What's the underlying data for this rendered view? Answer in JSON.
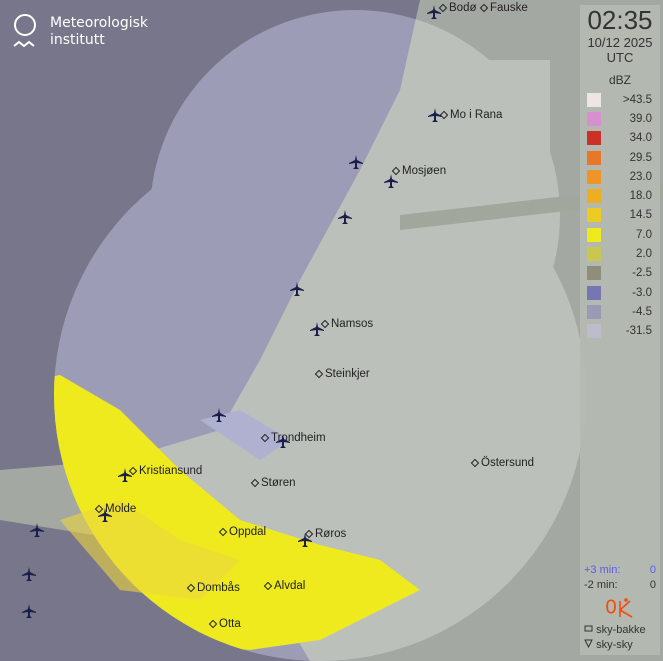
{
  "brand": {
    "line1": "Meteorologisk",
    "line2": "institutt"
  },
  "time": "02:35",
  "date": "10/12 2025",
  "timezone": "UTC",
  "legend": {
    "unit": "dBZ",
    "items": [
      {
        "label": ">43.5",
        "color": "#efe4e6"
      },
      {
        "label": "39.0",
        "color": "#d690d0"
      },
      {
        "label": "34.0",
        "color": "#cc3026"
      },
      {
        "label": "29.5",
        "color": "#ea7628"
      },
      {
        "label": "23.0",
        "color": "#ee9428"
      },
      {
        "label": "18.0",
        "color": "#eeae22"
      },
      {
        "label": "14.5",
        "color": "#eccc24"
      },
      {
        "label": "7.0",
        "color": "#eeea1e"
      },
      {
        "label": "2.0",
        "color": "#c8c850"
      },
      {
        "label": "-2.5",
        "color": "#8e8e7a"
      },
      {
        "label": "-3.0",
        "color": "#7676b2"
      },
      {
        "label": "-4.5",
        "color": "#9a9ab6"
      },
      {
        "label": "-31.5",
        "color": "#bcbccc"
      }
    ]
  },
  "nowcast": {
    "plus_label": "+3 min:",
    "plus_value": "0",
    "minus_label": "-2 min:",
    "minus_value": "0"
  },
  "lightning": {
    "count": "0",
    "color": "#f04c10"
  },
  "keys": {
    "ground": "sky-bakke",
    "cloud": "sky-sky"
  },
  "places": [
    "Bodø",
    "Fauske",
    "Mo i Rana",
    "Mosjøen",
    "Namsos",
    "Steinkjer",
    "Trondheim",
    "Östersund",
    "Kristiansund",
    "Molde",
    "Støren",
    "Oppdal",
    "Røros",
    "Dombås",
    "Alvdal",
    "Otta"
  ]
}
